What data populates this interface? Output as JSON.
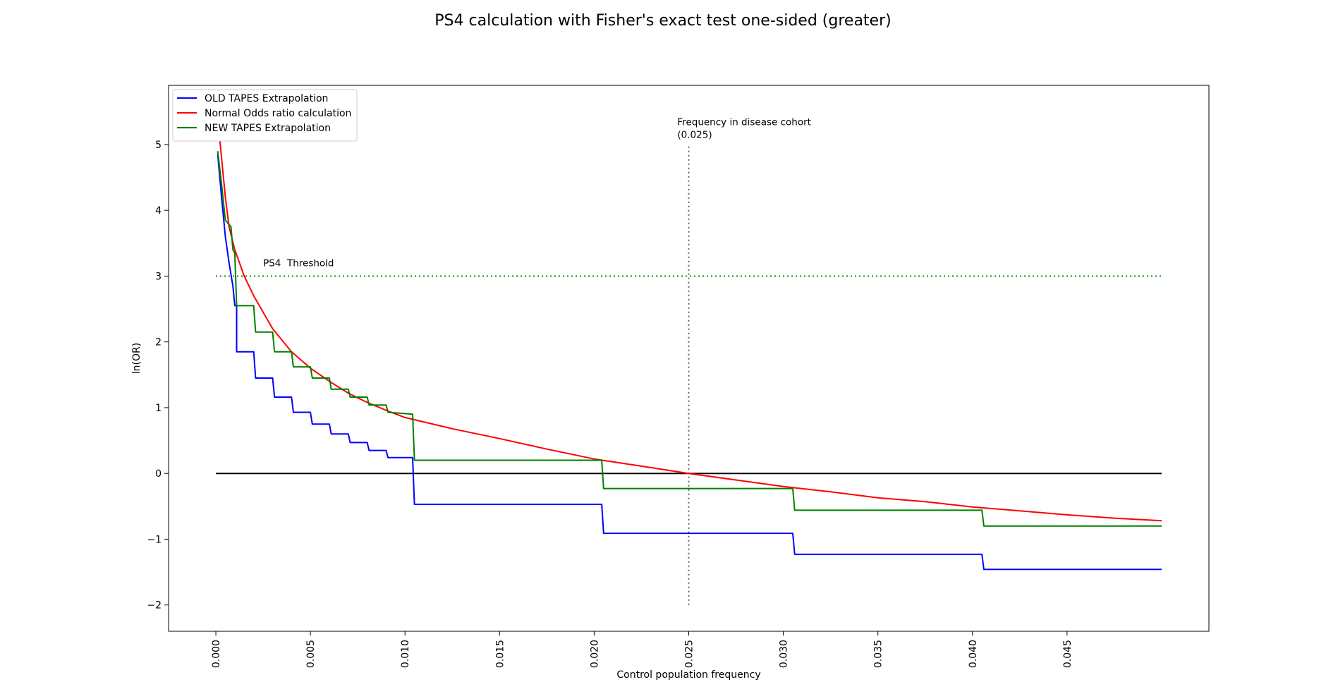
{
  "chart_data": {
    "type": "line",
    "title": "PS4 calculation with Fisher's exact test one-sided (greater)",
    "xlabel": "Control population frequency",
    "ylabel": "ln(OR)",
    "xlim": [
      -0.0025,
      0.0525
    ],
    "ylim": [
      -2.4,
      5.9
    ],
    "x_ticks": [
      0.0,
      0.005,
      0.01,
      0.015,
      0.02,
      0.025,
      0.03,
      0.035,
      0.04,
      0.045
    ],
    "x_tick_labels": [
      "0.000",
      "0.005",
      "0.010",
      "0.015",
      "0.020",
      "0.025",
      "0.030",
      "0.035",
      "0.040",
      "0.045"
    ],
    "y_ticks": [
      -2,
      -1,
      0,
      1,
      2,
      3,
      4,
      5
    ],
    "y_tick_labels": [
      "−2",
      "−1",
      "0",
      "1",
      "2",
      "3",
      "4",
      "5"
    ],
    "grid": false,
    "legend_position": "upper-left",
    "series": [
      {
        "name": "OLD TAPES Extrapolation",
        "color": "#0000ff",
        "style": "steps",
        "points": [
          [
            0.0001,
            4.85
          ],
          [
            0.0003,
            4.2
          ],
          [
            0.0005,
            3.6
          ],
          [
            0.0007,
            3.2
          ],
          [
            0.0009,
            2.85
          ],
          [
            0.001,
            2.55
          ],
          [
            0.0011,
            2.55
          ],
          [
            0.0011,
            1.85
          ],
          [
            0.002,
            1.85
          ],
          [
            0.0021,
            1.45
          ],
          [
            0.003,
            1.45
          ],
          [
            0.0031,
            1.16
          ],
          [
            0.004,
            1.16
          ],
          [
            0.0041,
            0.93
          ],
          [
            0.005,
            0.93
          ],
          [
            0.0051,
            0.75
          ],
          [
            0.006,
            0.75
          ],
          [
            0.0061,
            0.6
          ],
          [
            0.007,
            0.6
          ],
          [
            0.0071,
            0.47
          ],
          [
            0.008,
            0.47
          ],
          [
            0.0081,
            0.35
          ],
          [
            0.009,
            0.35
          ],
          [
            0.0091,
            0.24
          ],
          [
            0.0104,
            0.24
          ],
          [
            0.0105,
            -0.47
          ],
          [
            0.0204,
            -0.47
          ],
          [
            0.0205,
            -0.91
          ],
          [
            0.0305,
            -0.91
          ],
          [
            0.0306,
            -1.23
          ],
          [
            0.0405,
            -1.23
          ],
          [
            0.0406,
            -1.46
          ],
          [
            0.05,
            -1.46
          ]
        ]
      },
      {
        "name": "Normal Odds ratio calculation",
        "color": "#ff0000",
        "style": "curve",
        "points": [
          [
            0.0002,
            5.1
          ],
          [
            0.0003,
            4.8
          ],
          [
            0.0005,
            4.2
          ],
          [
            0.0007,
            3.75
          ],
          [
            0.001,
            3.4
          ],
          [
            0.0015,
            3.0
          ],
          [
            0.002,
            2.7
          ],
          [
            0.003,
            2.2
          ],
          [
            0.004,
            1.85
          ],
          [
            0.005,
            1.6
          ],
          [
            0.006,
            1.4
          ],
          [
            0.007,
            1.22
          ],
          [
            0.008,
            1.08
          ],
          [
            0.009,
            0.96
          ],
          [
            0.01,
            0.85
          ],
          [
            0.0125,
            0.68
          ],
          [
            0.015,
            0.53
          ],
          [
            0.0175,
            0.37
          ],
          [
            0.02,
            0.22
          ],
          [
            0.0225,
            0.11
          ],
          [
            0.025,
            0.0
          ],
          [
            0.0275,
            -0.1
          ],
          [
            0.03,
            -0.2
          ],
          [
            0.0325,
            -0.28
          ],
          [
            0.035,
            -0.37
          ],
          [
            0.0375,
            -0.43
          ],
          [
            0.04,
            -0.51
          ],
          [
            0.0425,
            -0.57
          ],
          [
            0.045,
            -0.63
          ],
          [
            0.0475,
            -0.68
          ],
          [
            0.05,
            -0.72
          ]
        ]
      },
      {
        "name": "NEW TAPES Extrapolation",
        "color": "#008000",
        "style": "steps",
        "points": [
          [
            0.0001,
            4.9
          ],
          [
            0.0003,
            4.4
          ],
          [
            0.0005,
            3.85
          ],
          [
            0.0008,
            3.75
          ],
          [
            0.0009,
            3.4
          ],
          [
            0.001,
            3.35
          ],
          [
            0.0011,
            2.55
          ],
          [
            0.002,
            2.55
          ],
          [
            0.0021,
            2.15
          ],
          [
            0.003,
            2.15
          ],
          [
            0.0031,
            1.85
          ],
          [
            0.004,
            1.85
          ],
          [
            0.0041,
            1.62
          ],
          [
            0.005,
            1.62
          ],
          [
            0.0051,
            1.45
          ],
          [
            0.006,
            1.45
          ],
          [
            0.0061,
            1.28
          ],
          [
            0.007,
            1.28
          ],
          [
            0.0071,
            1.16
          ],
          [
            0.008,
            1.16
          ],
          [
            0.0081,
            1.04
          ],
          [
            0.009,
            1.04
          ],
          [
            0.0091,
            0.93
          ],
          [
            0.0104,
            0.9
          ],
          [
            0.0105,
            0.2
          ],
          [
            0.0204,
            0.2
          ],
          [
            0.0205,
            -0.23
          ],
          [
            0.0305,
            -0.23
          ],
          [
            0.0306,
            -0.56
          ],
          [
            0.0405,
            -0.56
          ],
          [
            0.0406,
            -0.8
          ],
          [
            0.05,
            -0.8
          ]
        ]
      }
    ],
    "reference_lines": {
      "zero_line": {
        "y": 0,
        "x_range": [
          0.0,
          0.05
        ],
        "color": "#000000"
      },
      "threshold": {
        "y": 3,
        "x_range": [
          0.0,
          0.05
        ],
        "color": "#008000",
        "label": "PS4  Threshold",
        "label_x": 0.0025,
        "label_y": 3.15
      },
      "disease_freq": {
        "x": 0.025,
        "y_range": [
          -2,
          5.0
        ],
        "color": "#555555",
        "label_line1": "Frequency in disease cohort",
        "label_line2": "(0.025)",
        "label_x": 0.0244,
        "label_y": 5.1
      }
    }
  }
}
